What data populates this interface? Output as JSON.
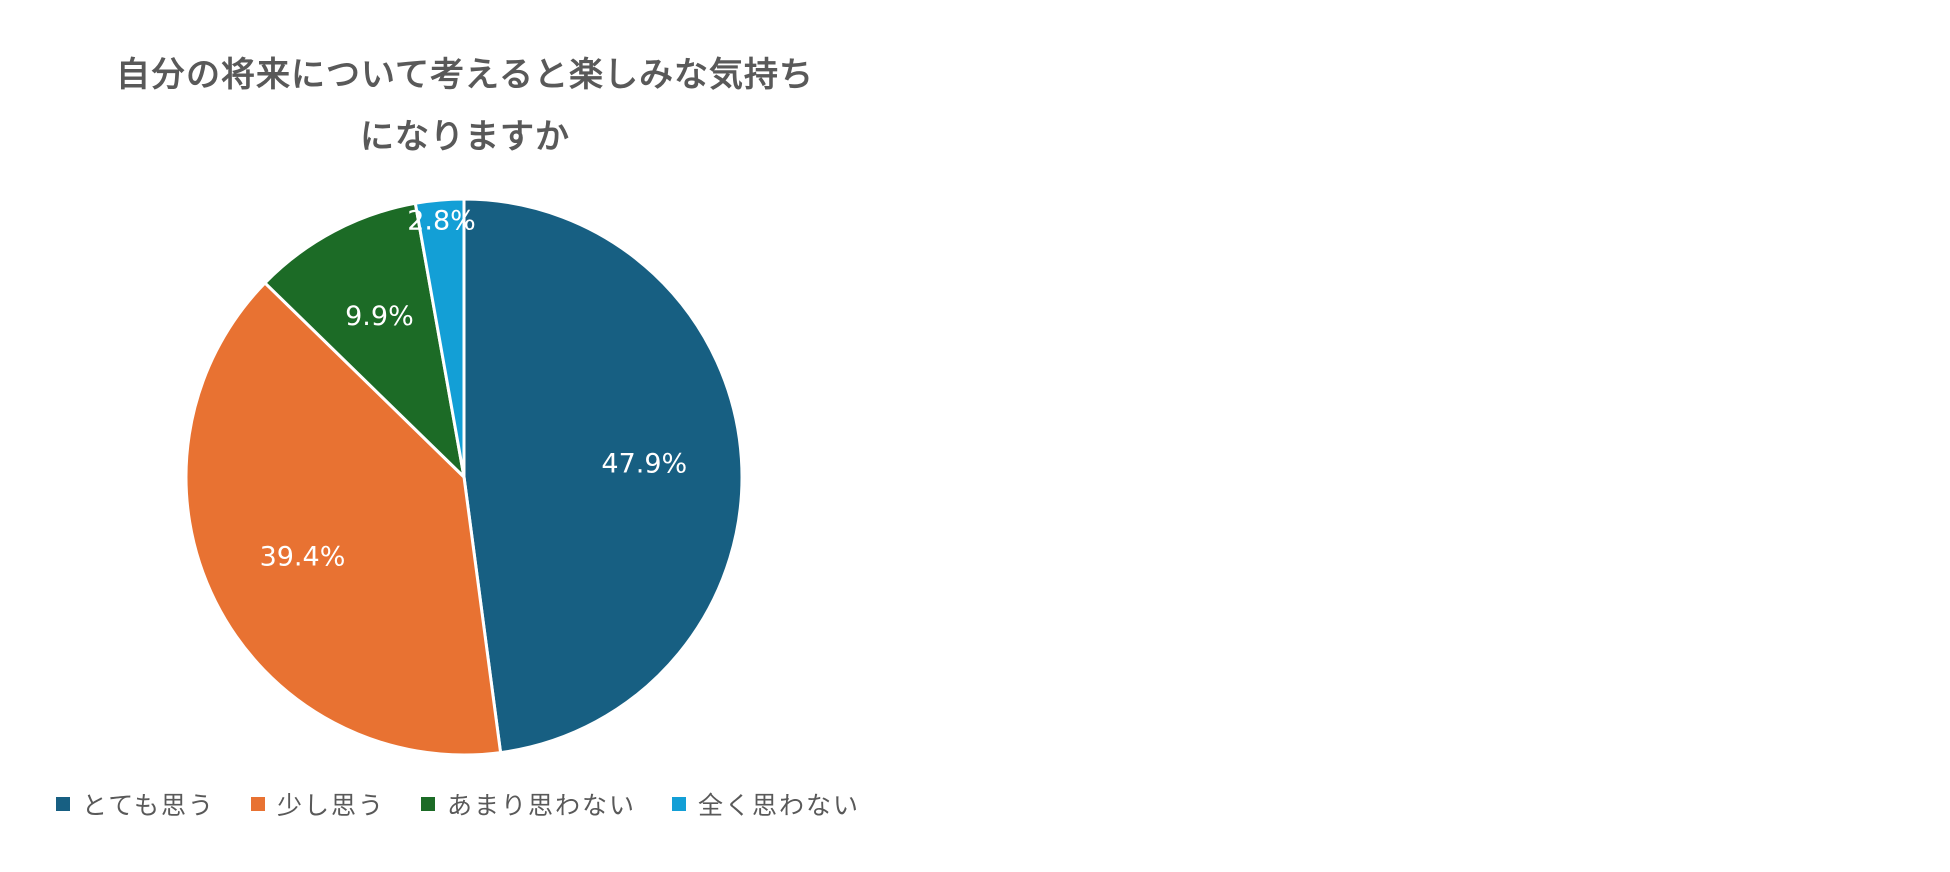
{
  "chart_data": {
    "type": "pie",
    "title_lines": [
      "自分の将来について考えると楽しみな気持ち",
      "になりますか"
    ],
    "categories": [
      "とても思う",
      "少し思う",
      "あまり思わない",
      "全く思わない"
    ],
    "values": [
      47.9,
      39.4,
      9.9,
      2.8
    ],
    "labels": [
      "47.9%",
      "39.4%",
      "9.9%",
      "2.8%"
    ],
    "colors": [
      "#175f82",
      "#e87232",
      "#1c6b26",
      "#139fd6"
    ],
    "start_angle_deg": 0,
    "direction": "clockwise",
    "legend_position": "bottom"
  }
}
